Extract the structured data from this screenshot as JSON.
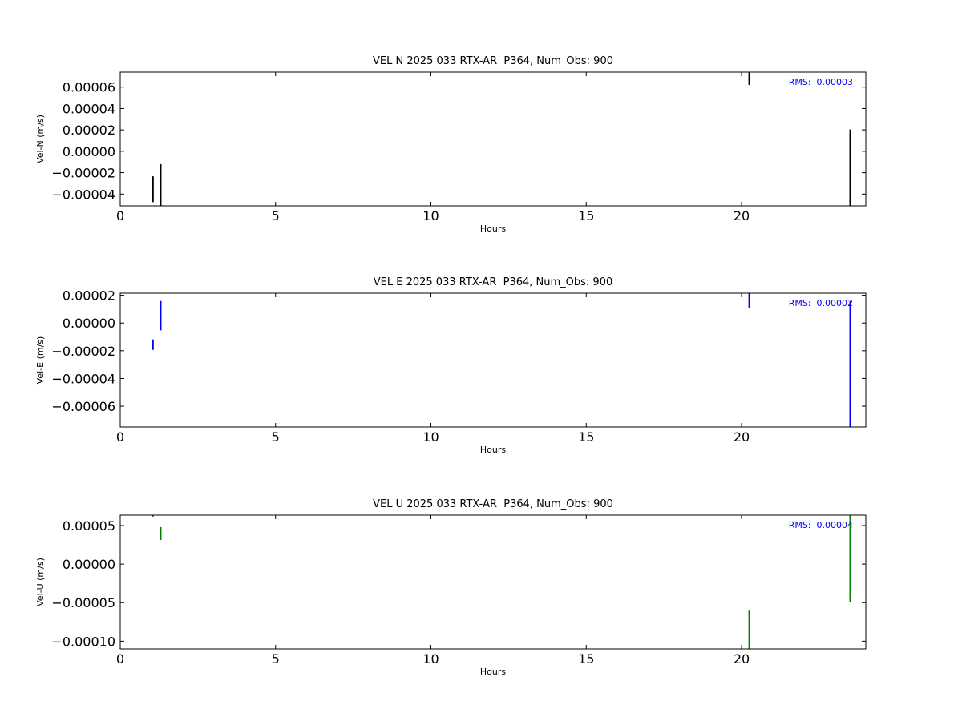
{
  "chart_data": [
    {
      "type": "vlines",
      "title": "VEL N 2025 033 RTX-AR  P364, Num_Obs: 900",
      "x_label": "Hours",
      "y_label": "Vel-N (m/s)",
      "annotation": "RMS:  0.00003",
      "annotation_color": "#0000ff",
      "color": "#000000",
      "x": [
        1.05,
        1.3,
        20.25,
        23.5
      ],
      "low": [
        -4.75e-05,
        -5.1e-05,
        6.2e-05,
        -5.1e-05
      ],
      "high": [
        -2.34e-05,
        -1.2e-05,
        7.4e-05,
        2.04e-05
      ],
      "xlim": [
        0,
        24
      ],
      "xticks": [
        0,
        5,
        10,
        15,
        20
      ],
      "ylim": [
        -5.1e-05,
        7.4e-05
      ],
      "yticks": [
        {
          "value": -4e-05,
          "label": "−0.00004"
        },
        {
          "value": -2e-05,
          "label": "−0.00002"
        },
        {
          "value": 0,
          "label": "0.00000"
        },
        {
          "value": 2e-05,
          "label": "0.00002"
        },
        {
          "value": 4e-05,
          "label": "0.00004"
        },
        {
          "value": 6e-05,
          "label": "0.00006"
        }
      ]
    },
    {
      "type": "vlines",
      "title": "VEL E 2025 033 RTX-AR  P364, Num_Obs: 900",
      "x_label": "Hours",
      "y_label": "Vel-E (m/s)",
      "annotation": "RMS:  0.00002",
      "annotation_color": "#0000ff",
      "color": "#0000ff",
      "x": [
        1.05,
        1.3,
        20.25,
        23.5
      ],
      "low": [
        -1.94e-05,
        -5.3e-06,
        1.06e-05,
        -7.5e-05
      ],
      "high": [
        -1.18e-05,
        1.59e-05,
        2.15e-05,
        1.59e-05
      ],
      "xlim": [
        0,
        24
      ],
      "xticks": [
        0,
        5,
        10,
        15,
        20
      ],
      "ylim": [
        -7.5e-05,
        2.15e-05
      ],
      "yticks": [
        {
          "value": -6e-05,
          "label": "−0.00006"
        },
        {
          "value": -4e-05,
          "label": "−0.00004"
        },
        {
          "value": -2e-05,
          "label": "−0.00002"
        },
        {
          "value": 0,
          "label": "0.00000"
        },
        {
          "value": 2e-05,
          "label": "0.00002"
        }
      ]
    },
    {
      "type": "vlines",
      "title": "VEL U 2025 033 RTX-AR  P364, Num_Obs: 900",
      "x_label": "Hours",
      "y_label": "Vel-U (m/s)",
      "annotation": "RMS:  0.00004",
      "annotation_color": "#0000ff",
      "color": "#008000",
      "x": [
        1.05,
        1.3,
        20.25,
        23.5
      ],
      "low": [
        6.15e-05,
        3.13e-05,
        -0.00011,
        -4.9e-05
      ],
      "high": [
        6.35e-05,
        4.8e-05,
        -6.04e-05,
        6.35e-05
      ],
      "xlim": [
        0,
        24
      ],
      "xticks": [
        0,
        5,
        10,
        15,
        20
      ],
      "ylim": [
        -0.00011,
        6.35e-05
      ],
      "yticks": [
        {
          "value": -0.0001,
          "label": "−0.00010"
        },
        {
          "value": -5e-05,
          "label": "−0.00005"
        },
        {
          "value": 0,
          "label": "0.00000"
        },
        {
          "value": 5e-05,
          "label": "0.00005"
        }
      ]
    }
  ]
}
